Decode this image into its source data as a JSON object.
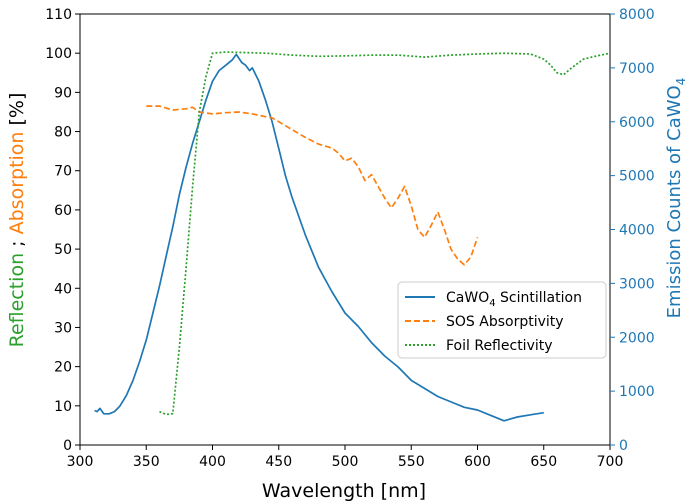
{
  "chart_data": {
    "type": "line",
    "xlabel": "Wavelength [nm]",
    "xlim": [
      300,
      700
    ],
    "xticks": [
      "300",
      "350",
      "400",
      "450",
      "500",
      "550",
      "600",
      "650",
      "700"
    ],
    "left_axis": {
      "label_parts": [
        "Reflection",
        " ; ",
        "Absorption",
        " [%]"
      ],
      "label_colors": [
        "#2ca02c",
        "#000000",
        "#ff7f0e",
        "#000000"
      ],
      "ylim": [
        0,
        110
      ],
      "ticks": [
        "0",
        "10",
        "20",
        "30",
        "40",
        "50",
        "60",
        "70",
        "80",
        "90",
        "100",
        "110"
      ]
    },
    "right_axis": {
      "label": "Emission Counts of CaWO",
      "label_sub": "4",
      "color": "#1f77b4",
      "ylim": [
        0,
        8000
      ],
      "ticks": [
        "0",
        "1000",
        "2000",
        "3000",
        "4000",
        "5000",
        "6000",
        "7000",
        "8000"
      ]
    },
    "legend": {
      "position": "lower-right",
      "items": [
        {
          "text": "CaWO",
          "sub": "4",
          "rest": " Scintillation",
          "color": "#1f77b4",
          "style": "solid"
        },
        {
          "text": "SOS Absorptivity",
          "sub": "",
          "rest": "",
          "color": "#ff7f0e",
          "style": "dashed"
        },
        {
          "text": "Foil Reflectivity",
          "sub": "",
          "rest": "",
          "color": "#2ca02c",
          "style": "dotted"
        }
      ]
    },
    "series": [
      {
        "name": "CaWO4 Scintillation",
        "axis": "right",
        "color": "#1f77b4",
        "style": "solid",
        "x": [
          311,
          313,
          315,
          318,
          322,
          326,
          330,
          335,
          340,
          345,
          350,
          355,
          360,
          365,
          370,
          375,
          380,
          385,
          390,
          395,
          400,
          405,
          410,
          415,
          418,
          422,
          425,
          428,
          430,
          435,
          440,
          445,
          450,
          455,
          460,
          470,
          480,
          490,
          500,
          510,
          520,
          530,
          540,
          550,
          560,
          570,
          580,
          590,
          600,
          610,
          620,
          630,
          640,
          650
        ],
        "y": [
          640,
          620,
          680,
          580,
          580,
          620,
          720,
          920,
          1200,
          1550,
          1950,
          2450,
          2950,
          3500,
          4050,
          4650,
          5150,
          5600,
          6000,
          6400,
          6750,
          6950,
          7050,
          7150,
          7250,
          7100,
          7050,
          6950,
          7000,
          6750,
          6400,
          6000,
          5500,
          5000,
          4600,
          3900,
          3300,
          2850,
          2450,
          2200,
          1900,
          1650,
          1450,
          1200,
          1050,
          900,
          800,
          700,
          650,
          550,
          450,
          520,
          560,
          600
        ]
      },
      {
        "name": "SOS Absorptivity",
        "axis": "left",
        "color": "#ff7f0e",
        "style": "dashed",
        "x": [
          350,
          360,
          370,
          380,
          385,
          390,
          400,
          410,
          420,
          430,
          440,
          445,
          450,
          460,
          470,
          480,
          490,
          495,
          500,
          505,
          510,
          515,
          520,
          525,
          530,
          535,
          540,
          545,
          550,
          555,
          560,
          565,
          570,
          575,
          580,
          585,
          590,
          595,
          600
        ],
        "y": [
          86.5,
          86.5,
          85.5,
          85.8,
          86.2,
          85.0,
          84.5,
          84.8,
          85.0,
          84.5,
          83.8,
          83.5,
          82.5,
          80.5,
          78.5,
          76.8,
          75.8,
          74.5,
          72.5,
          73.2,
          71.0,
          67.5,
          69.0,
          66.0,
          63.0,
          60.5,
          63.0,
          66.0,
          61.0,
          55.0,
          53.0,
          56.0,
          59.5,
          55.0,
          50.0,
          47.5,
          46.0,
          48.0,
          53.0
        ]
      },
      {
        "name": "Foil Reflectivity",
        "axis": "left",
        "color": "#2ca02c",
        "style": "dotted",
        "x": [
          360,
          365,
          370,
          375,
          380,
          385,
          390,
          395,
          400,
          410,
          420,
          440,
          460,
          480,
          500,
          520,
          540,
          560,
          580,
          600,
          620,
          640,
          650,
          655,
          660,
          665,
          670,
          680,
          690,
          700
        ],
        "y": [
          8.5,
          7.8,
          8.0,
          25,
          45,
          66,
          85,
          94,
          100,
          100.3,
          100.2,
          100,
          99.5,
          99.2,
          99.3,
          99.5,
          99.5,
          99.0,
          99.5,
          99.8,
          100,
          99.8,
          98.5,
          97.0,
          95.0,
          94.5,
          96.0,
          98.5,
          99.3,
          100
        ]
      }
    ]
  }
}
